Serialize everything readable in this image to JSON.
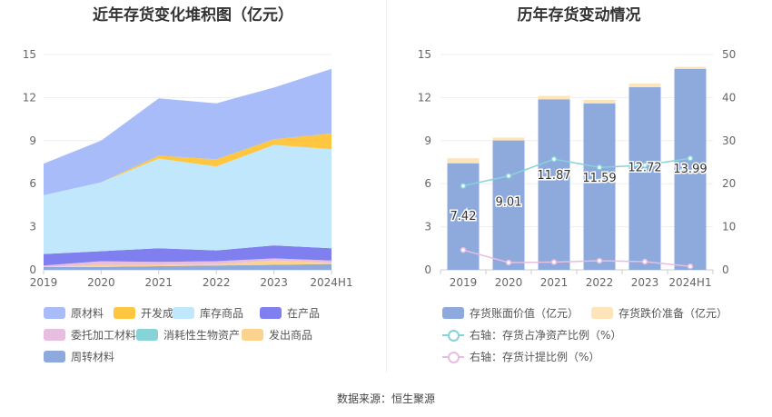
{
  "left": {
    "title": "近年存货变化堆积图（亿元）",
    "chart_data": {
      "type": "area",
      "stacked": true,
      "categories": [
        "2019",
        "2020",
        "2021",
        "2022",
        "2023",
        "2024H1"
      ],
      "ylim": [
        0,
        15
      ],
      "yticks": [
        0,
        3,
        6,
        9,
        12,
        15
      ],
      "series": [
        {
          "name": "周转材料",
          "color": "#8eaadc",
          "values": [
            0.2,
            0.2,
            0.25,
            0.3,
            0.35,
            0.4
          ]
        },
        {
          "name": "发出商品",
          "color": "#fbd38f",
          "values": [
            0.0,
            0.15,
            0.1,
            0.1,
            0.3,
            0.1
          ]
        },
        {
          "name": "消耗性生物资产",
          "color": "#86d3d8",
          "values": [
            0.0,
            0.0,
            0.0,
            0.0,
            0.0,
            0.0
          ]
        },
        {
          "name": "委托加工材料",
          "color": "#e7bde0",
          "values": [
            0.1,
            0.25,
            0.2,
            0.2,
            0.15,
            0.15
          ]
        },
        {
          "name": "在产品",
          "color": "#7f7ff0",
          "values": [
            0.8,
            0.7,
            0.95,
            0.75,
            0.9,
            0.85
          ]
        },
        {
          "name": "库存商品",
          "color": "#c0e7fb",
          "values": [
            4.1,
            4.8,
            6.25,
            5.85,
            7.0,
            6.9
          ]
        },
        {
          "name": "开发成本",
          "color": "#ffc741",
          "values": [
            0.0,
            0.0,
            0.2,
            0.5,
            0.4,
            1.1
          ]
        },
        {
          "name": "原材料",
          "color": "#a8bcfa",
          "values": [
            2.2,
            2.9,
            4.0,
            3.9,
            3.6,
            4.5
          ]
        }
      ],
      "legend_order": [
        "原材料",
        "开发成本",
        "库存商品",
        "在产品",
        "委托加工材料",
        "消耗性生物资产",
        "发出商品",
        "周转材料"
      ]
    }
  },
  "right": {
    "title": "历年存货变动情况",
    "chart_data": {
      "type": "bar+line",
      "categories": [
        "2019",
        "2020",
        "2021",
        "2022",
        "2023",
        "2024H1"
      ],
      "ylim_left": [
        0,
        15
      ],
      "yticks_left": [
        0,
        3,
        6,
        9,
        12,
        15
      ],
      "ylim_right": [
        0,
        50
      ],
      "yticks_right": [
        0,
        10,
        20,
        30,
        40,
        50
      ],
      "bars": {
        "name": "存货账面价值（亿元）",
        "color": "#8eaadc",
        "values": [
          7.42,
          9.01,
          11.87,
          11.59,
          12.72,
          13.99
        ]
      },
      "bars_top": {
        "name": "存货跌价准备（亿元）",
        "color": "#fde4b9",
        "values": [
          0.35,
          0.2,
          0.25,
          0.25,
          0.25,
          0.15
        ]
      },
      "bar_labels": [
        "7.42",
        "9.01",
        "11.87",
        "11.59",
        "12.72",
        "13.99"
      ],
      "lines": [
        {
          "name": "右轴：存货占净资产比例（%）",
          "color": "#86d3d8",
          "values": [
            19.5,
            21.8,
            25.7,
            23.8,
            24.3,
            25.9
          ]
        },
        {
          "name": "右轴：存货计提比例（%）",
          "color": "#e7bde0",
          "values": [
            4.6,
            1.7,
            1.8,
            2.1,
            1.9,
            0.8
          ]
        }
      ]
    }
  },
  "source": "数据来源：恒生聚源"
}
